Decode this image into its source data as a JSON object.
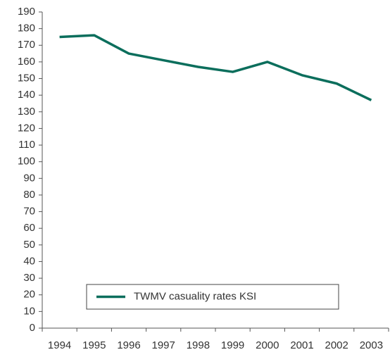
{
  "chart_data": {
    "type": "line",
    "categories": [
      "1994",
      "1995",
      "1996",
      "1997",
      "1998",
      "1999",
      "2000",
      "2001",
      "2002",
      "2003"
    ],
    "series": [
      {
        "name": "TWMV casuality rates KSI",
        "color": "#0b6e5c",
        "values": [
          175,
          176,
          165,
          161,
          157,
          154,
          160,
          152,
          147,
          137
        ]
      }
    ],
    "ylim": [
      0,
      190
    ],
    "yticks": [
      0,
      10,
      20,
      30,
      40,
      50,
      60,
      70,
      80,
      90,
      100,
      110,
      120,
      130,
      140,
      150,
      160,
      170,
      180,
      190
    ],
    "grid": false,
    "legend": "bottom"
  }
}
